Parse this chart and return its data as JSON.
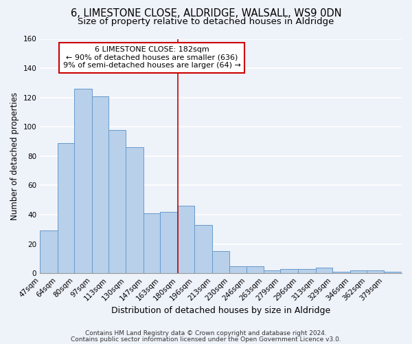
{
  "title": "6, LIMESTONE CLOSE, ALDRIDGE, WALSALL, WS9 0DN",
  "subtitle": "Size of property relative to detached houses in Aldridge",
  "xlabel": "Distribution of detached houses by size in Aldridge",
  "ylabel": "Number of detached properties",
  "bin_labels": [
    "47sqm",
    "64sqm",
    "80sqm",
    "97sqm",
    "113sqm",
    "130sqm",
    "147sqm",
    "163sqm",
    "180sqm",
    "196sqm",
    "213sqm",
    "230sqm",
    "246sqm",
    "263sqm",
    "279sqm",
    "296sqm",
    "313sqm",
    "329sqm",
    "346sqm",
    "362sqm",
    "379sqm"
  ],
  "bin_edges": [
    47,
    64,
    80,
    97,
    113,
    130,
    147,
    163,
    180,
    196,
    213,
    230,
    246,
    263,
    279,
    296,
    313,
    329,
    346,
    362,
    379
  ],
  "bar_heights": [
    29,
    89,
    126,
    121,
    98,
    86,
    41,
    42,
    46,
    33,
    15,
    5,
    5,
    2,
    3,
    3,
    4,
    1,
    2,
    2,
    1
  ],
  "bar_color": "#b8d0ea",
  "bar_edge_color": "#6699cc",
  "vline_x": 180,
  "vline_color": "#cc0000",
  "annotation_title": "6 LIMESTONE CLOSE: 182sqm",
  "annotation_line1": "← 90% of detached houses are smaller (636)",
  "annotation_line2": "9% of semi-detached houses are larger (64) →",
  "annotation_box_color": "#cc0000",
  "ylim": [
    0,
    160
  ],
  "yticks": [
    0,
    20,
    40,
    60,
    80,
    100,
    120,
    140,
    160
  ],
  "footer1": "Contains HM Land Registry data © Crown copyright and database right 2024.",
  "footer2": "Contains public sector information licensed under the Open Government Licence v3.0.",
  "background_color": "#eef2f9",
  "grid_color": "#ffffff",
  "title_fontsize": 10.5,
  "subtitle_fontsize": 9.5,
  "xlabel_fontsize": 9,
  "ylabel_fontsize": 8.5,
  "tick_fontsize": 7.5,
  "annotation_fontsize": 8,
  "footer_fontsize": 6.5
}
